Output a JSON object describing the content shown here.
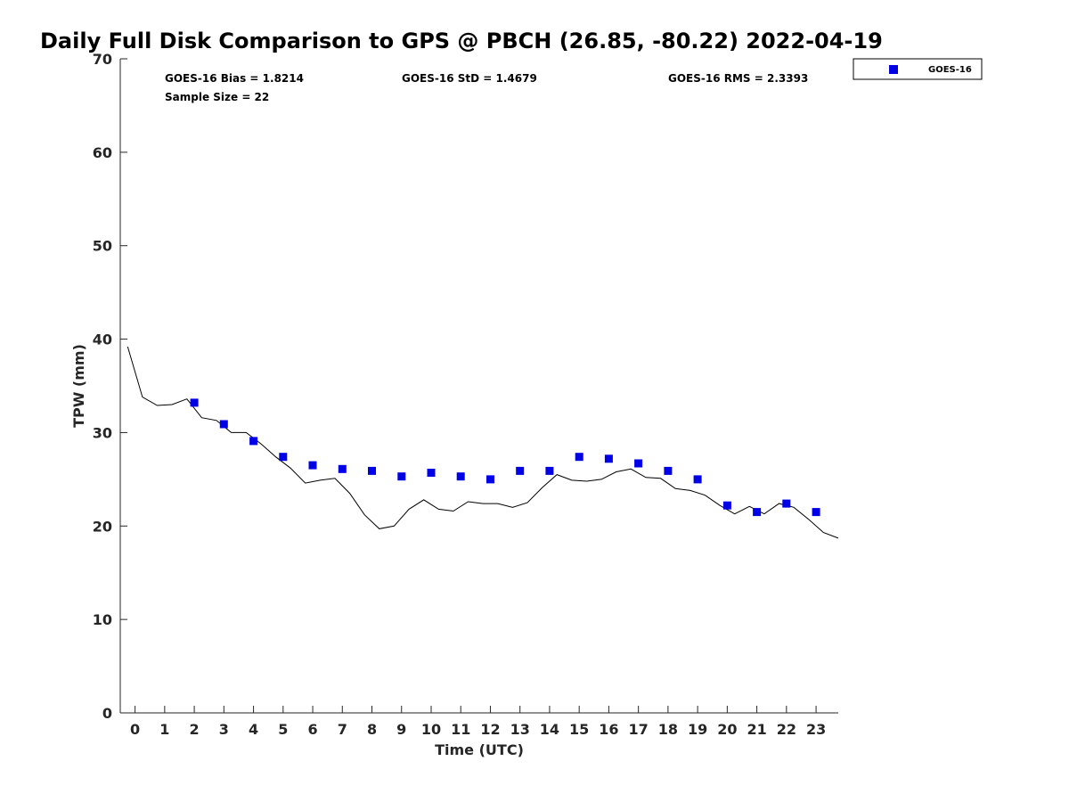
{
  "chart_data": {
    "type": "scatter",
    "title": "Daily Full Disk Comparison to GPS @ PBCH (26.85, -80.22) 2022-04-19",
    "xlabel": "Time (UTC)",
    "ylabel": "TPW (mm)",
    "xlim": [
      -0.5,
      23.75
    ],
    "ylim": [
      0,
      70
    ],
    "xticks": [
      0,
      1,
      2,
      3,
      4,
      5,
      6,
      7,
      8,
      9,
      10,
      11,
      12,
      13,
      14,
      15,
      16,
      17,
      18,
      19,
      20,
      21,
      22,
      23
    ],
    "xtick_labels": [
      "0",
      "1",
      "2",
      "3",
      "4",
      "5",
      "6",
      "7",
      "8",
      "9",
      "10",
      "11",
      "12",
      "13",
      "14",
      "15",
      "16",
      "17",
      "18",
      "19",
      "20",
      "21",
      "22",
      "23"
    ],
    "yticks": [
      0,
      10,
      20,
      30,
      40,
      50,
      60,
      70
    ],
    "ytick_labels": [
      "0",
      "10",
      "20",
      "30",
      "40",
      "50",
      "60",
      "70"
    ],
    "stats": {
      "bias": "GOES-16 Bias = 1.8214",
      "std": "GOES-16 StD = 1.4679",
      "rms": "GOES-16 RMS = 2.3393",
      "sample": "Sample Size = 22"
    },
    "legend": {
      "label": "GOES-16",
      "position": "top-right"
    },
    "series": [
      {
        "name": "GOES-16",
        "kind": "scatter",
        "color": "#0000e6",
        "x": [
          2,
          3,
          4,
          5,
          6,
          7,
          8,
          9,
          10,
          11,
          12,
          13,
          14,
          15,
          16,
          17,
          18,
          19,
          20,
          21,
          22,
          23
        ],
        "y": [
          33.2,
          30.9,
          29.1,
          27.4,
          26.5,
          26.1,
          25.9,
          25.3,
          25.7,
          25.3,
          25.0,
          25.9,
          25.9,
          27.4,
          27.2,
          26.7,
          25.9,
          25.0,
          22.2,
          21.5,
          22.4,
          21.5
        ]
      },
      {
        "name": "GPS",
        "kind": "line",
        "color": "#000000",
        "x": [
          -0.25,
          0.25,
          0.75,
          1.25,
          1.75,
          2.25,
          2.75,
          3.25,
          3.75,
          4.25,
          4.75,
          5.25,
          5.75,
          6.25,
          6.75,
          7.25,
          7.75,
          8.25,
          8.75,
          9.25,
          9.75,
          10.25,
          10.75,
          11.25,
          11.75,
          12.25,
          12.75,
          13.25,
          13.75,
          14.25,
          14.75,
          15.25,
          15.75,
          16.25,
          16.75,
          17.25,
          17.75,
          18.25,
          18.75,
          19.25,
          19.75,
          20.25,
          20.75,
          21.25,
          21.75,
          22.25,
          22.75,
          23.25,
          23.75
        ],
        "y": [
          39.2,
          33.8,
          32.9,
          33.0,
          33.6,
          31.6,
          31.3,
          30.0,
          30.0,
          28.8,
          27.4,
          26.2,
          24.6,
          24.9,
          25.1,
          23.5,
          21.2,
          19.7,
          20.0,
          21.8,
          22.8,
          21.8,
          21.6,
          22.6,
          22.4,
          22.4,
          22.0,
          22.5,
          24.1,
          25.5,
          24.9,
          24.8,
          25.0,
          25.8,
          26.1,
          25.2,
          25.1,
          24.0,
          23.8,
          23.3,
          22.2,
          21.3,
          22.1,
          21.3,
          22.4,
          22.0,
          20.7,
          19.3,
          18.7
        ]
      }
    ]
  }
}
